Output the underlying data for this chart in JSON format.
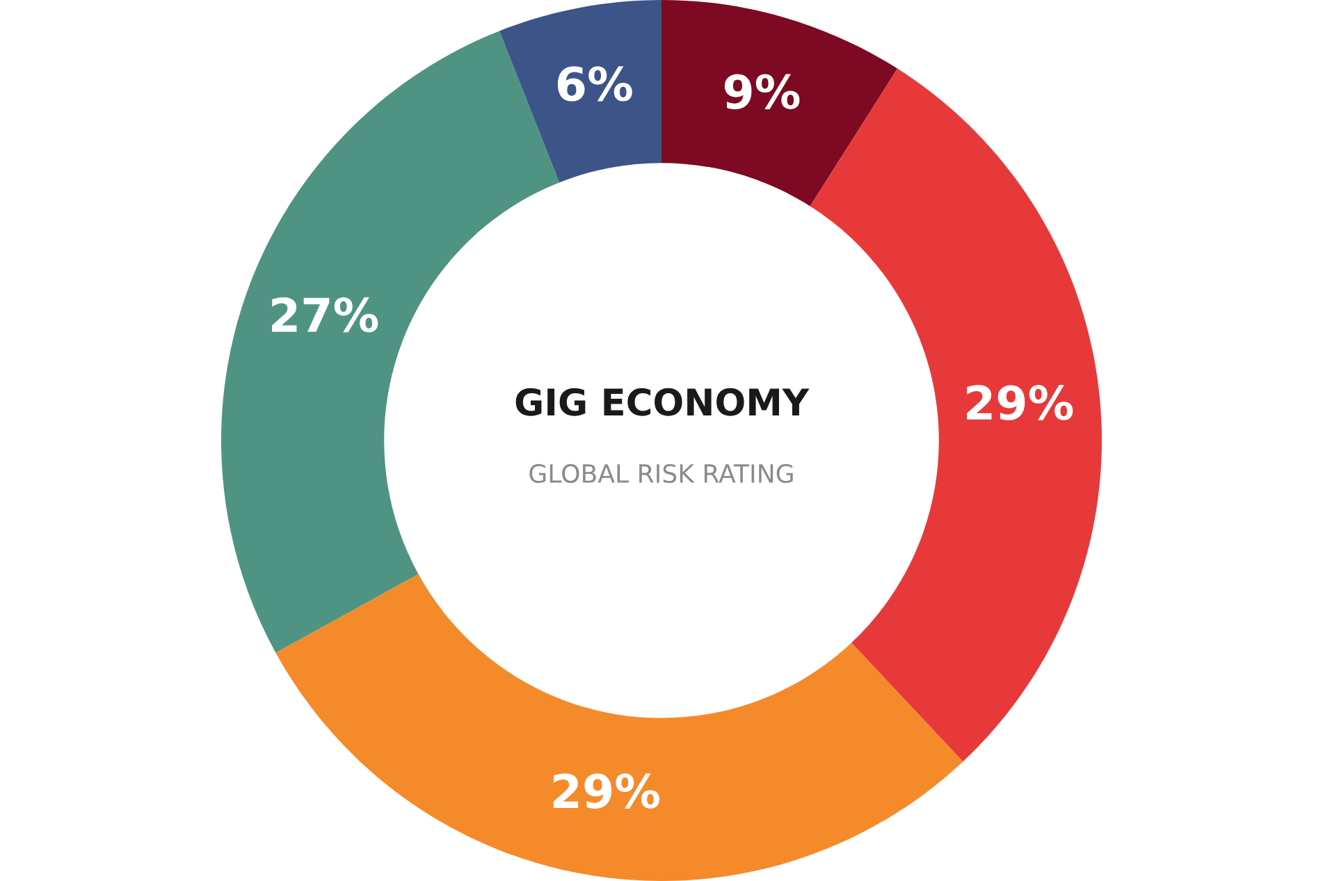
{
  "chart_data": {
    "type": "donut",
    "title": "GIG ECONOMY",
    "subtitle": "GLOBAL RISK RATING",
    "categories": [
      null,
      null,
      null,
      null,
      null
    ],
    "values": [
      9,
      29,
      29,
      27,
      6
    ],
    "value_labels": [
      "9%",
      "29%",
      "29%",
      "27%",
      "6%"
    ],
    "colors": [
      "#7d0a22",
      "#e8393a",
      "#f58a2b",
      "#4f9482",
      "#3c5487"
    ],
    "legend": false
  }
}
